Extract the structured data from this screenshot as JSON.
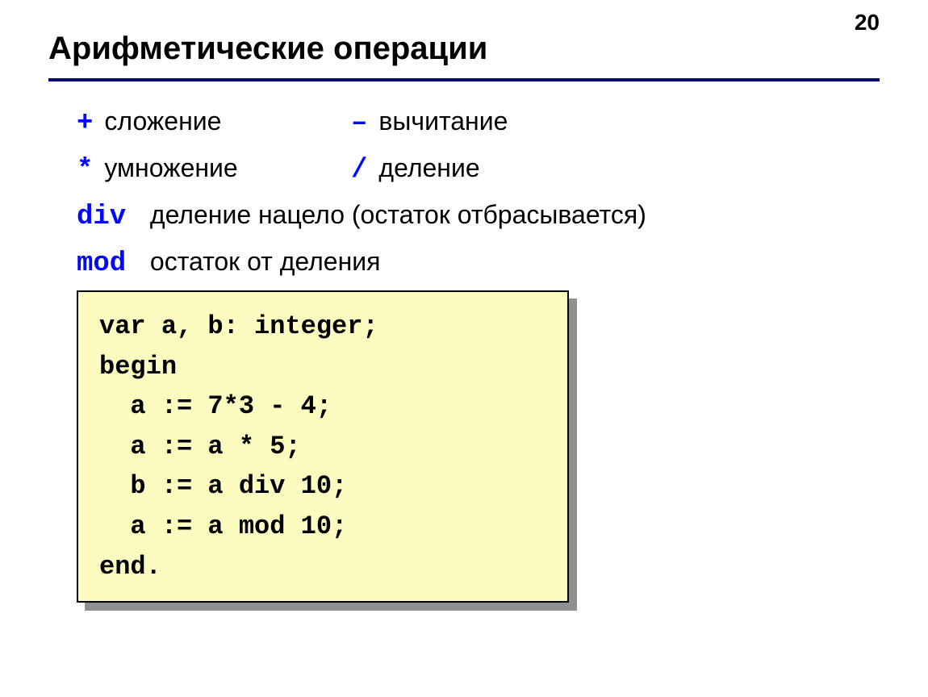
{
  "page_number": "20",
  "title": "Арифметические операции",
  "colors": {
    "rule": "#000080",
    "operator": "#0008ff",
    "code_bg": "#fcfcc0",
    "code_border": "#000000",
    "shadow": "#909090",
    "text": "#000000",
    "background": "#ffffff"
  },
  "typography": {
    "title_fontsize_pt": 30,
    "body_fontsize_pt": 24,
    "code_fontsize_pt": 24,
    "body_font": "Arial",
    "code_font": "Courier New",
    "code_weight": "bold",
    "operator_weight": "bold"
  },
  "operations": {
    "row1": {
      "a": {
        "op": "+",
        "desc": "сложение"
      },
      "b": {
        "op": "–",
        "desc": "вычитание"
      }
    },
    "row2": {
      "a": {
        "op": "*",
        "desc": "умножение"
      },
      "b": {
        "op": "/",
        "desc": "деление"
      }
    },
    "div": {
      "op": "div",
      "desc": "деление нацело (остаток отбрасывается)"
    },
    "mod": {
      "op": "mod",
      "desc": "остаток от деления"
    }
  },
  "code": {
    "lines": [
      "var a, b: integer;",
      "begin",
      "  a := 7*3 - 4;",
      "  a := a * 5;",
      "  b := a div 10;",
      "  a := a mod 10;",
      "end."
    ],
    "text": "var a, b: integer;\nbegin\n  a := 7*3 - 4;\n  a := a * 5;\n  b := a div 10;\n  a := a mod 10;\nend."
  }
}
